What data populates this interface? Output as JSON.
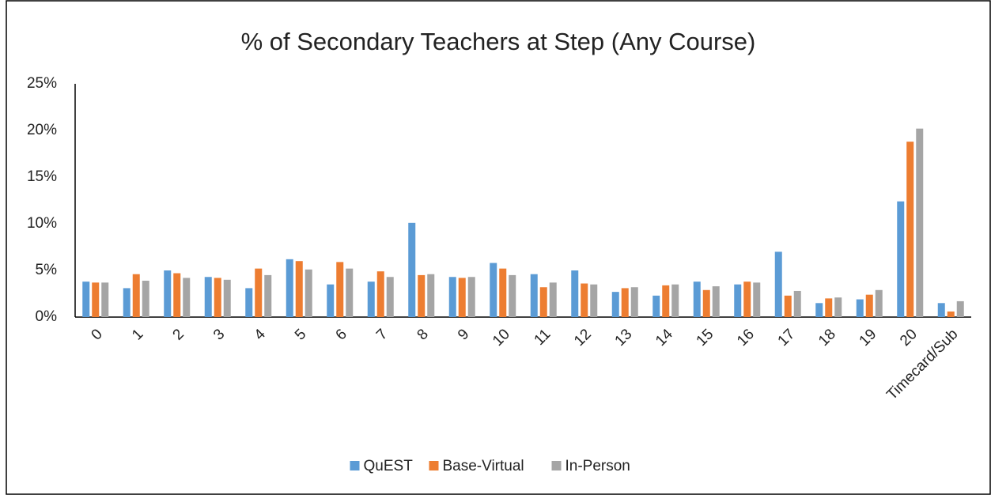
{
  "chart_data": {
    "type": "bar",
    "title": "% of Secondary Teachers at Step (Any Course)",
    "categories": [
      "0",
      "1",
      "2",
      "3",
      "4",
      "5",
      "6",
      "7",
      "8",
      "9",
      "10",
      "11",
      "12",
      "13",
      "14",
      "15",
      "16",
      "17",
      "18",
      "19",
      "20",
      "Timecard/Sub"
    ],
    "series": [
      {
        "name": "QuEST",
        "color": "#5b9bd5",
        "values": [
          3.8,
          3.1,
          5.0,
          4.3,
          3.1,
          6.2,
          3.5,
          3.8,
          10.1,
          4.3,
          5.8,
          4.6,
          5.0,
          2.7,
          2.3,
          3.8,
          3.5,
          7.0,
          1.5,
          1.9,
          12.4,
          1.5
        ]
      },
      {
        "name": "Base-Virtual",
        "color": "#ed7d31",
        "values": [
          3.7,
          4.6,
          4.7,
          4.2,
          5.2,
          6.0,
          5.9,
          4.9,
          4.5,
          4.2,
          5.2,
          3.2,
          3.6,
          3.1,
          3.4,
          2.9,
          3.8,
          2.3,
          2.0,
          2.4,
          18.8,
          0.6
        ]
      },
      {
        "name": "In-Person",
        "color": "#a5a5a5",
        "values": [
          3.7,
          3.9,
          4.2,
          4.0,
          4.5,
          5.1,
          5.2,
          4.3,
          4.6,
          4.3,
          4.5,
          3.7,
          3.5,
          3.2,
          3.5,
          3.3,
          3.7,
          2.8,
          2.1,
          2.9,
          20.2,
          1.7
        ]
      }
    ],
    "ylim": [
      0,
      25
    ],
    "yticks": [
      {
        "value": 0,
        "label": "0%"
      },
      {
        "value": 5,
        "label": "5%"
      },
      {
        "value": 10,
        "label": "10%"
      },
      {
        "value": 15,
        "label": "15%"
      },
      {
        "value": 20,
        "label": "20%"
      },
      {
        "value": 25,
        "label": "25%"
      }
    ],
    "grid": false,
    "legend": "bottom"
  }
}
